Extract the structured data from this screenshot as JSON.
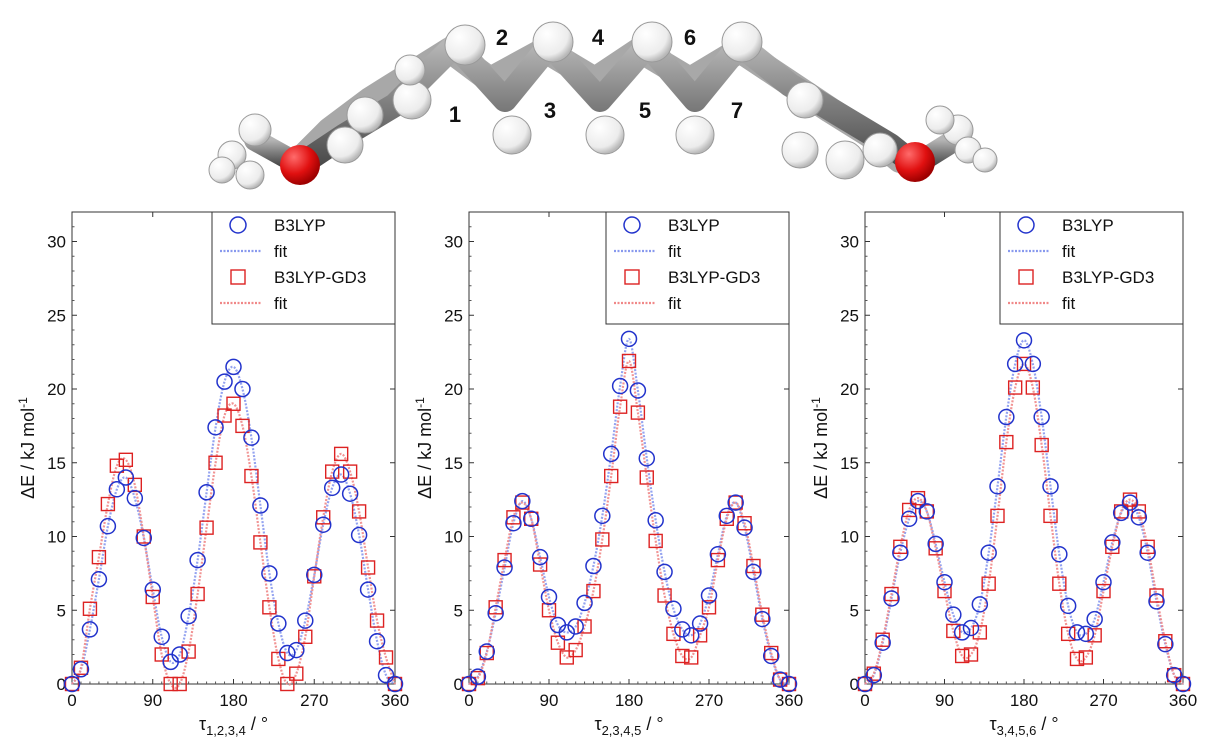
{
  "molecule": {
    "labels": [
      "1",
      "2",
      "3",
      "4",
      "5",
      "6",
      "7"
    ],
    "colors": {
      "carbon": "#7d7d7d",
      "hydrogen": "#f2f2f2",
      "oxygen": "#e01010"
    }
  },
  "colors": {
    "b3lyp": "#2233cc",
    "b3lyp_fit": "#8899ee",
    "gd3": "#dd2222",
    "gd3_fit": "#f08888"
  },
  "chart_data": [
    {
      "type": "scatter",
      "xlabel_main": "τ",
      "xlabel_sub": "1,2,3,4",
      "xlabel_unit": " / °",
      "ylabel": "ΔE / kJ mol",
      "ylabel_sup": "-1",
      "xlim": [
        0,
        360
      ],
      "ylim": [
        0,
        32
      ],
      "xticks": [
        0,
        90,
        180,
        270,
        360
      ],
      "yticks": [
        0,
        5,
        10,
        15,
        20,
        25,
        30
      ],
      "legend": [
        "B3LYP",
        "fit",
        "B3LYP-GD3",
        "fit"
      ],
      "legend_position": "top-right",
      "series": [
        {
          "name": "B3LYP",
          "marker": "circle",
          "x": [
            0,
            10,
            20,
            30,
            40,
            50,
            60,
            70,
            80,
            90,
            100,
            110,
            120,
            130,
            140,
            150,
            160,
            170,
            180,
            190,
            200,
            210,
            220,
            230,
            240,
            250,
            260,
            270,
            280,
            290,
            300,
            310,
            320,
            330,
            340,
            350,
            360
          ],
          "y": [
            0,
            1.0,
            3.7,
            7.1,
            10.7,
            13.2,
            14.0,
            12.6,
            9.9,
            6.4,
            3.2,
            1.5,
            2.0,
            4.6,
            8.4,
            13.0,
            17.4,
            20.5,
            21.5,
            20.0,
            16.7,
            12.1,
            7.5,
            4.1,
            2.1,
            2.3,
            4.3,
            7.4,
            10.8,
            13.3,
            14.2,
            12.9,
            10.1,
            6.4,
            2.9,
            0.6,
            0
          ]
        },
        {
          "name": "B3LYP-GD3",
          "marker": "square",
          "x": [
            0,
            10,
            20,
            30,
            40,
            50,
            60,
            70,
            80,
            90,
            100,
            110,
            120,
            130,
            140,
            150,
            160,
            170,
            180,
            190,
            200,
            210,
            220,
            230,
            240,
            250,
            260,
            270,
            280,
            290,
            300,
            310,
            320,
            330,
            340,
            350,
            360
          ],
          "y": [
            0,
            1.1,
            5.1,
            8.6,
            12.2,
            14.8,
            15.2,
            13.5,
            10.0,
            5.9,
            2.0,
            0,
            0,
            2.2,
            6.1,
            10.6,
            15.0,
            18.2,
            19.0,
            17.5,
            14.1,
            9.6,
            5.2,
            1.7,
            0,
            0.7,
            3.2,
            7.3,
            11.3,
            14.4,
            15.6,
            14.4,
            11.7,
            7.9,
            4.3,
            1.8,
            0
          ]
        }
      ]
    },
    {
      "type": "scatter",
      "xlabel_main": "τ",
      "xlabel_sub": "2,3,4,5",
      "xlabel_unit": " / °",
      "ylabel": "ΔE / kJ mol",
      "ylabel_sup": "-1",
      "xlim": [
        0,
        360
      ],
      "ylim": [
        0,
        32
      ],
      "xticks": [
        0,
        90,
        180,
        270,
        360
      ],
      "yticks": [
        0,
        5,
        10,
        15,
        20,
        25,
        30
      ],
      "legend": [
        "B3LYP",
        "fit",
        "B3LYP-GD3",
        "fit"
      ],
      "legend_position": "top-right",
      "series": [
        {
          "name": "B3LYP",
          "marker": "circle",
          "x": [
            0,
            10,
            20,
            30,
            40,
            50,
            60,
            70,
            80,
            90,
            100,
            110,
            120,
            130,
            140,
            150,
            160,
            170,
            180,
            190,
            200,
            210,
            220,
            230,
            240,
            250,
            260,
            270,
            280,
            290,
            300,
            310,
            320,
            330,
            340,
            350,
            360
          ],
          "y": [
            0,
            0.5,
            2.2,
            4.8,
            7.9,
            10.9,
            12.4,
            11.2,
            8.6,
            5.9,
            4.0,
            3.5,
            3.9,
            5.5,
            8.0,
            11.4,
            15.6,
            20.2,
            23.4,
            19.9,
            15.3,
            11.1,
            7.6,
            5.1,
            3.7,
            3.3,
            4.1,
            6.0,
            8.8,
            11.4,
            12.3,
            10.6,
            7.6,
            4.4,
            1.9,
            0.3,
            0
          ]
        },
        {
          "name": "B3LYP-GD3",
          "marker": "square",
          "x": [
            0,
            10,
            20,
            30,
            40,
            50,
            60,
            70,
            80,
            90,
            100,
            110,
            120,
            130,
            140,
            150,
            160,
            170,
            180,
            190,
            200,
            210,
            220,
            230,
            240,
            250,
            260,
            270,
            280,
            290,
            300,
            310,
            320,
            330,
            340,
            350,
            360
          ],
          "y": [
            0,
            0.4,
            2.1,
            5.2,
            8.4,
            11.3,
            12.3,
            11.2,
            8.1,
            5.0,
            2.8,
            1.8,
            2.3,
            3.9,
            6.3,
            9.8,
            14.1,
            18.8,
            21.9,
            18.4,
            14.0,
            9.7,
            6.0,
            3.4,
            1.9,
            1.8,
            3.3,
            5.2,
            8.4,
            11.2,
            12.3,
            10.9,
            8.0,
            4.7,
            2.1,
            0.3,
            0
          ]
        }
      ]
    },
    {
      "type": "scatter",
      "xlabel_main": "τ",
      "xlabel_sub": "3,4,5,6",
      "xlabel_unit": " / °",
      "ylabel": "ΔE / kJ mol",
      "ylabel_sup": "-1",
      "xlim": [
        0,
        360
      ],
      "ylim": [
        0,
        32
      ],
      "xticks": [
        0,
        90,
        180,
        270,
        360
      ],
      "yticks": [
        0,
        5,
        10,
        15,
        20,
        25,
        30
      ],
      "legend": [
        "B3LYP",
        "fit",
        "B3LYP-GD3",
        "fit"
      ],
      "legend_position": "top-right",
      "series": [
        {
          "name": "B3LYP",
          "marker": "circle",
          "x": [
            0,
            10,
            20,
            30,
            40,
            50,
            60,
            70,
            80,
            90,
            100,
            110,
            120,
            130,
            140,
            150,
            160,
            170,
            180,
            190,
            200,
            210,
            220,
            230,
            240,
            250,
            260,
            270,
            280,
            290,
            300,
            310,
            320,
            330,
            340,
            350,
            360
          ],
          "y": [
            0,
            0.6,
            2.8,
            5.8,
            8.9,
            11.2,
            12.4,
            11.7,
            9.5,
            6.9,
            4.7,
            3.5,
            3.8,
            5.4,
            8.9,
            13.4,
            18.1,
            21.7,
            23.3,
            21.7,
            18.1,
            13.4,
            8.8,
            5.3,
            3.5,
            3.4,
            4.4,
            6.9,
            9.6,
            11.6,
            12.3,
            11.3,
            8.9,
            5.6,
            2.7,
            0.6,
            0
          ]
        },
        {
          "name": "B3LYP-GD3",
          "marker": "square",
          "x": [
            0,
            10,
            20,
            30,
            40,
            50,
            60,
            70,
            80,
            90,
            100,
            110,
            120,
            130,
            140,
            150,
            160,
            170,
            180,
            190,
            200,
            210,
            220,
            230,
            240,
            250,
            260,
            270,
            280,
            290,
            300,
            310,
            320,
            330,
            340,
            350,
            360
          ],
          "y": [
            0,
            0.7,
            3.0,
            6.1,
            9.3,
            11.8,
            12.6,
            11.7,
            9.2,
            6.3,
            3.6,
            1.9,
            2.0,
            3.5,
            6.8,
            11.4,
            16.4,
            20.1,
            21.7,
            20.1,
            16.2,
            11.4,
            6.8,
            3.4,
            1.7,
            1.8,
            3.3,
            6.3,
            9.3,
            11.7,
            12.5,
            11.7,
            9.3,
            6.0,
            2.9,
            0.6,
            0
          ]
        }
      ]
    }
  ]
}
